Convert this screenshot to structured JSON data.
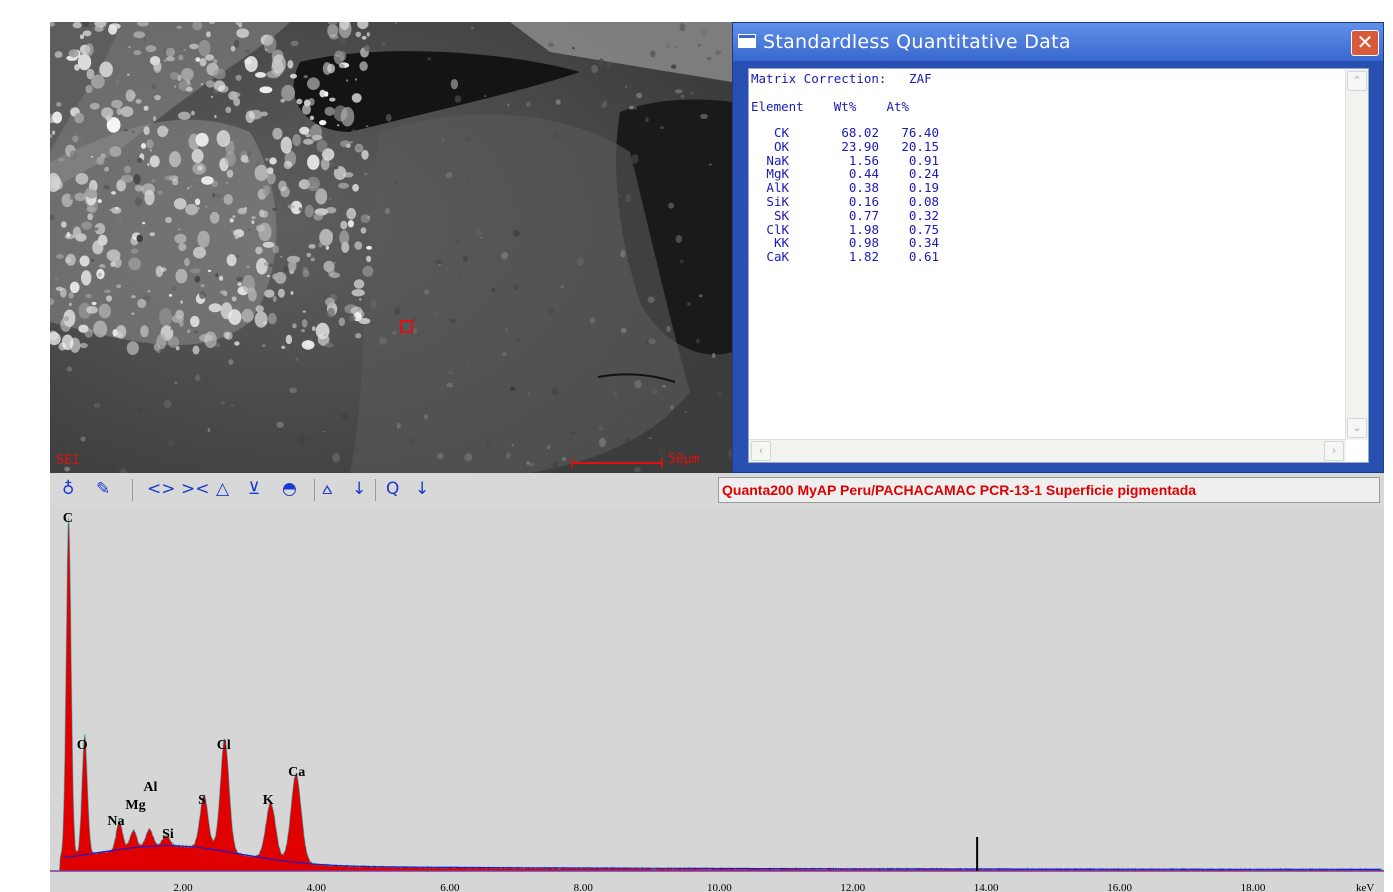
{
  "sem_image": {
    "detector_label": "SE1",
    "scale_bar_label": "50µm"
  },
  "quant_window": {
    "title": "Standardless Quantitative Data",
    "close_icon": "close-icon",
    "matrix_line": "Matrix Correction:   ZAF",
    "header_line": "Element    Wt%    At%",
    "rows": [
      {
        "element": "CK",
        "wt": "68.02",
        "at": "76.40"
      },
      {
        "element": "OK",
        "wt": "23.90",
        "at": "20.15"
      },
      {
        "element": "NaK",
        "wt": "1.56",
        "at": "0.91"
      },
      {
        "element": "MgK",
        "wt": "0.44",
        "at": "0.24"
      },
      {
        "element": "AlK",
        "wt": "0.38",
        "at": "0.19"
      },
      {
        "element": "SiK",
        "wt": "0.16",
        "at": "0.08"
      },
      {
        "element": "SK",
        "wt": "0.77",
        "at": "0.32"
      },
      {
        "element": "ClK",
        "wt": "1.98",
        "at": "0.75"
      },
      {
        "element": "KK",
        "wt": "0.98",
        "at": "0.34"
      },
      {
        "element": "CaK",
        "wt": "1.82",
        "at": "0.61"
      }
    ]
  },
  "toolbar": {
    "tools": [
      {
        "name": "probe-icon",
        "glyph": "♁"
      },
      {
        "name": "marker-icon",
        "glyph": "✎"
      },
      {
        "name": "expand-icon",
        "glyph": "<>"
      },
      {
        "name": "contract-icon",
        "glyph": "><"
      },
      {
        "name": "scale-up-icon",
        "glyph": "⏶"
      },
      {
        "name": "scale-down-icon",
        "glyph": "⏷"
      },
      {
        "name": "erase-icon",
        "glyph": "⬘"
      },
      {
        "name": "peak-id-icon",
        "glyph": "⩟"
      },
      {
        "name": "peak-id-down-icon",
        "glyph": "↓"
      },
      {
        "name": "zoom-icon",
        "glyph": "Q"
      },
      {
        "name": "zoom-down-icon",
        "glyph": "↓"
      }
    ],
    "caption": "Quanta200 MyAP Peru/PACHACAMAC PCR-13-1 Superficie pigmentada"
  },
  "colors": {
    "spectrum_fill": "#e00000",
    "background_fit": "#1c1ccc",
    "peak_outline": "#18d0d8",
    "caption_text": "#e00000",
    "quant_text": "#1a1ab8"
  },
  "chart_data": {
    "type": "area",
    "title": "",
    "xlabel": "keV",
    "ylabel": "",
    "xlim": [
      0,
      20
    ],
    "ylim": [
      0,
      1
    ],
    "x_ticks": [
      "2.00",
      "4.00",
      "6.00",
      "8.00",
      "10.00",
      "12.00",
      "14.00",
      "16.00",
      "18.00"
    ],
    "x_unit_label": "keV",
    "marker_position_keV": 13.9,
    "peaks": [
      {
        "label": "C",
        "energy": 0.28,
        "intensity": 0.97
      },
      {
        "label": "O",
        "energy": 0.52,
        "intensity": 0.34
      },
      {
        "label": "Na",
        "energy": 1.04,
        "intensity": 0.08
      },
      {
        "label": "Mg",
        "energy": 1.25,
        "intensity": 0.05
      },
      {
        "label": "Al",
        "energy": 1.49,
        "intensity": 0.05
      },
      {
        "label": "Si",
        "energy": 1.74,
        "intensity": 0.03
      },
      {
        "label": "S",
        "energy": 2.31,
        "intensity": 0.15
      },
      {
        "label": "Cl",
        "energy": 2.62,
        "intensity": 0.32
      },
      {
        "label": "K",
        "energy": 3.31,
        "intensity": 0.16
      },
      {
        "label": "Ca",
        "energy": 3.69,
        "intensity": 0.25
      }
    ],
    "series": [
      {
        "values_note": "",
        "values": []
      }
    ]
  }
}
